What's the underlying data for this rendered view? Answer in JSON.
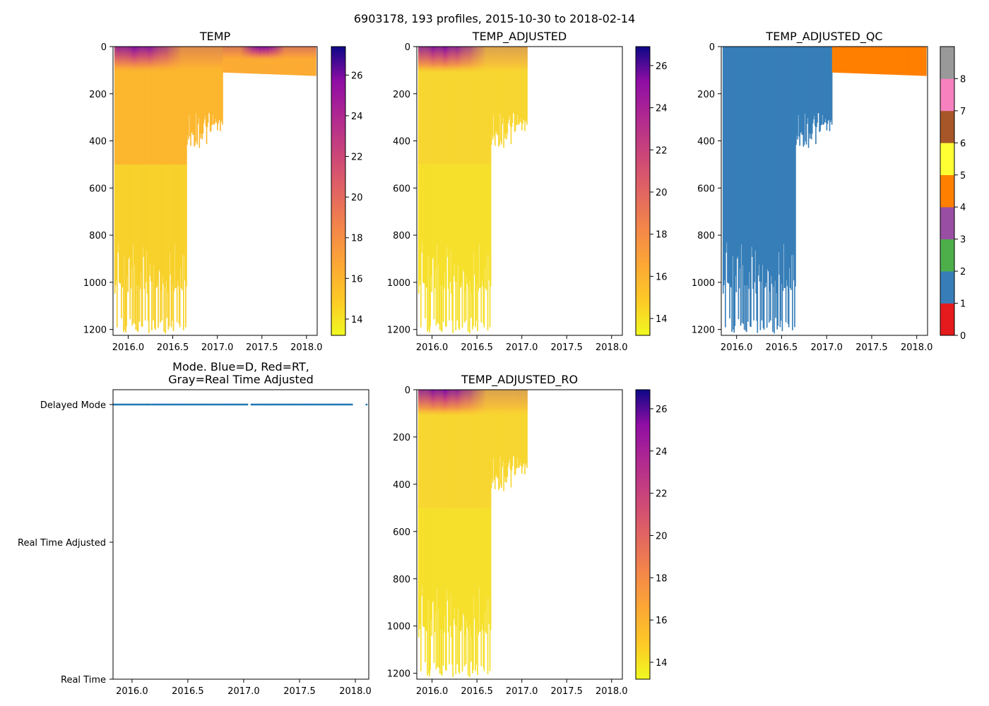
{
  "suptitle": "6903178, 193 profiles, 2015-10-30 to 2018-02-14",
  "chart_data": [
    {
      "type": "heatmap",
      "title": "TEMP",
      "x_ticks": [
        "2016.0",
        "2016.5",
        "2017.0",
        "2017.5",
        "2018.0"
      ],
      "y_ticks": [
        "0",
        "200",
        "400",
        "600",
        "800",
        "1000",
        "1200"
      ],
      "x_range": [
        2015.83,
        2018.12
      ],
      "y_range": [
        0,
        1225
      ],
      "colorbar": {
        "cmap": "plasma_r",
        "range": [
          13.2,
          27.4
        ],
        "ticks": [
          "14",
          "16",
          "18",
          "20",
          "22",
          "24",
          "26"
        ]
      },
      "coverage": "deep profiles 2015.83-2017.06, shallow (~120 dbar) profiles 2017.06-2018.12"
    },
    {
      "type": "heatmap",
      "title": "TEMP_ADJUSTED",
      "x_ticks": [
        "2016.0",
        "2016.5",
        "2017.0",
        "2017.5",
        "2018.0"
      ],
      "y_ticks": [
        "0",
        "200",
        "400",
        "600",
        "800",
        "1000",
        "1200"
      ],
      "x_range": [
        2015.83,
        2018.12
      ],
      "y_range": [
        0,
        1225
      ],
      "colorbar": {
        "cmap": "plasma_r",
        "range": [
          13.2,
          26.9
        ],
        "ticks": [
          "14",
          "16",
          "18",
          "20",
          "22",
          "24",
          "26"
        ]
      },
      "coverage": "deep profiles 2015.83-2017.06 only"
    },
    {
      "type": "heatmap",
      "title": "TEMP_ADJUSTED_QC",
      "x_ticks": [
        "2016.0",
        "2016.5",
        "2017.0",
        "2017.5",
        "2018.0"
      ],
      "y_ticks": [
        "0",
        "200",
        "400",
        "600",
        "800",
        "1000",
        "1200"
      ],
      "x_range": [
        2015.83,
        2018.12
      ],
      "y_range": [
        0,
        1225
      ],
      "colorbar": {
        "type": "categorical",
        "ticks": [
          "0",
          "1",
          "2",
          "3",
          "4",
          "5",
          "6",
          "7",
          "8"
        ],
        "colors": [
          "#e41a1c",
          "#377eb8",
          "#4daf4a",
          "#984ea3",
          "#ff7f00",
          "#ffff33",
          "#a65628",
          "#f781bf",
          "#999999"
        ]
      },
      "coverage": "QC=1 deep profiles 2015.83-2017.06, QC=4 shallow profiles 2017.06-2018.12"
    },
    {
      "type": "scatter",
      "title": "Mode. Blue=D, Red=RT,",
      "title_line2": "Gray=Real Time Adjusted",
      "x_ticks": [
        "2016.0",
        "2016.5",
        "2017.0",
        "2017.5",
        "2018.0"
      ],
      "x_range": [
        2015.83,
        2018.12
      ],
      "y_categories": [
        "Delayed Mode",
        "Real Time Adjusted",
        "Real Time"
      ],
      "series": [
        {
          "name": "Delayed Mode",
          "color": "#1f77b4",
          "segments": [
            [
              2015.84,
              2016.17
            ],
            [
              2016.18,
              2017.04
            ],
            [
              2017.07,
              2017.98
            ]
          ],
          "isolated_points": [
            2018.1
          ]
        }
      ]
    },
    {
      "type": "heatmap",
      "title": "TEMP_ADJUSTED_RO",
      "x_ticks": [
        "2016.0",
        "2016.5",
        "2017.0",
        "2017.5",
        "2018.0"
      ],
      "y_ticks": [
        "0",
        "200",
        "400",
        "600",
        "800",
        "1000",
        "1200"
      ],
      "x_range": [
        2015.83,
        2018.12
      ],
      "y_range": [
        0,
        1225
      ],
      "colorbar": {
        "cmap": "plasma_r",
        "range": [
          13.2,
          26.9
        ],
        "ticks": [
          "14",
          "16",
          "18",
          "20",
          "22",
          "24",
          "26"
        ]
      },
      "coverage": "deep profiles 2015.83-2017.06 only"
    }
  ]
}
